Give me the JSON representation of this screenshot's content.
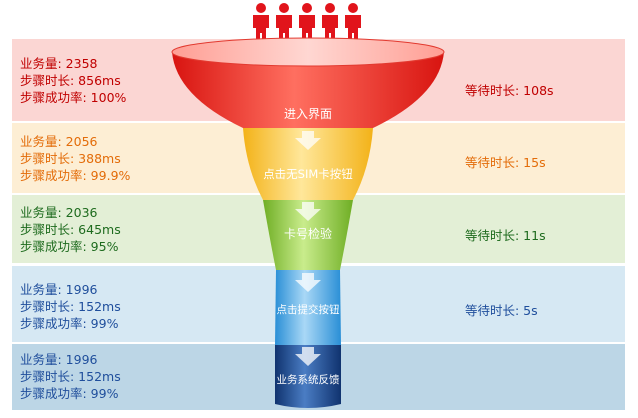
{
  "stages": [
    {
      "label": "进入界面",
      "volume": "业务量: 2358",
      "duration": "步骤时长: 856ms",
      "success": "步骤成功率: 100%",
      "wait": "等待时长: 108s",
      "band_color": "#fbd6d3",
      "text_color": "#c00000"
    },
    {
      "label": "点击无SIM卡按钮",
      "volume": "业务量: 2056",
      "duration": "步骤时长: 388ms",
      "success": "步骤成功率: 99.9%",
      "wait": "等待时长: 15s",
      "band_color": "#fdeed4",
      "text_color": "#e36c09"
    },
    {
      "label": "卡号检验",
      "volume": "业务量: 2036",
      "duration": "步骤时长: 645ms",
      "success": "步骤成功率: 95%",
      "wait": "等待时长: 11s",
      "band_color": "#e3efd6",
      "text_color": "#1e6b1e"
    },
    {
      "label": "点击提交按钮",
      "volume": "业务量: 1996",
      "duration": "步骤时长: 152ms",
      "success": "步骤成功率: 99%",
      "wait": "等待时长: 5s",
      "band_color": "#d6e8f3",
      "text_color": "#1f4e9c"
    },
    {
      "label": "业务系统反馈",
      "volume": "业务量: 1996",
      "duration": "步骤时长: 152ms",
      "success": "步骤成功率: 99%",
      "wait": "",
      "band_color": "#bcd6e6",
      "text_color": "#1f4e9c"
    }
  ]
}
